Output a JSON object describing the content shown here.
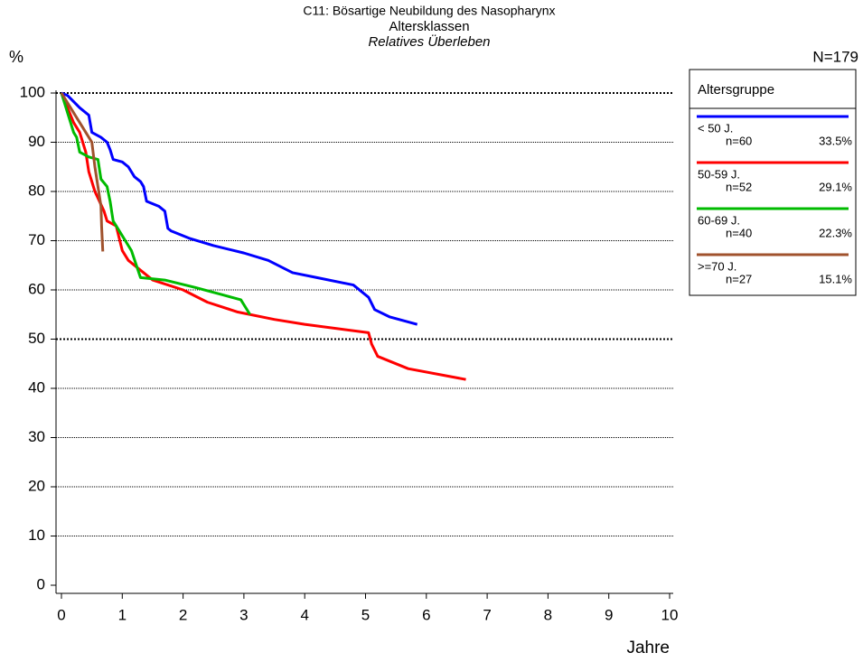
{
  "chart_data": {
    "type": "line",
    "title": "C11: Bösartige Neubildung des Nasopharynx",
    "subtitle": "Altersklassen",
    "subtitle2": "Relatives Überleben",
    "y_label": "%",
    "x_label": "Jahre",
    "total_label": "N=179",
    "legend_title": "Altersgruppe",
    "legend": "right",
    "grid": true,
    "xlim": [
      0,
      10
    ],
    "xticks": [
      0,
      1,
      2,
      3,
      4,
      5,
      6,
      7,
      8,
      9,
      10
    ],
    "ylim": [
      0,
      100
    ],
    "yticks": [
      0,
      10,
      20,
      30,
      40,
      50,
      60,
      70,
      80,
      90,
      100
    ],
    "series": [
      {
        "name": "< 50 J.",
        "n_label": "n=60",
        "share_label": "33.5%",
        "color": "#0000ff",
        "x": [
          0,
          0.1,
          0.3,
          0.45,
          0.5,
          0.65,
          0.75,
          0.8,
          0.85,
          1.0,
          1.1,
          1.2,
          1.3,
          1.35,
          1.4,
          1.6,
          1.7,
          1.75,
          1.8,
          2.1,
          2.5,
          3.0,
          3.4,
          3.8,
          4.2,
          4.8,
          5.05,
          5.15,
          5.4,
          5.85
        ],
        "values": [
          100,
          99.5,
          97,
          95.5,
          92,
          91,
          90,
          88.5,
          86.5,
          86,
          85,
          83,
          82,
          81,
          78,
          77,
          76,
          72.5,
          72,
          70.5,
          69,
          67.5,
          66,
          63.5,
          62.5,
          61,
          58.5,
          56,
          54.5,
          53
        ]
      },
      {
        "name": "50-59 J.",
        "n_label": "n=52",
        "share_label": "29.1%",
        "color": "#ff0000",
        "x": [
          0,
          0.1,
          0.2,
          0.3,
          0.4,
          0.45,
          0.55,
          0.7,
          0.75,
          0.9,
          1.0,
          1.1,
          1.3,
          1.5,
          2.0,
          2.4,
          2.9,
          3.5,
          4.0,
          5.05,
          5.1,
          5.2,
          5.7,
          6.65
        ],
        "values": [
          100,
          97,
          94,
          92,
          88,
          84,
          80,
          76,
          74,
          73,
          68,
          66,
          64,
          62,
          60,
          57.5,
          55.5,
          54,
          53,
          51.3,
          49,
          46.5,
          44,
          41.8
        ]
      },
      {
        "name": "60-69 J.",
        "n_label": "n=40",
        "share_label": "22.3%",
        "color": "#00bb00",
        "x": [
          0,
          0.1,
          0.2,
          0.25,
          0.3,
          0.45,
          0.6,
          0.65,
          0.75,
          0.8,
          0.85,
          0.95,
          1.05,
          1.15,
          1.3,
          1.7,
          2.2,
          2.65,
          2.95,
          3.1
        ],
        "values": [
          100,
          96,
          92,
          91,
          88,
          87,
          86.5,
          82.5,
          81,
          78,
          74,
          72,
          70,
          68,
          62.5,
          62,
          60.5,
          59,
          58,
          55
        ]
      },
      {
        "name": ">=70 J.",
        "n_label": "n=27",
        "share_label": "15.1%",
        "color": "#a0522d",
        "x": [
          0,
          0.15,
          0.3,
          0.4,
          0.5,
          0.55,
          0.6,
          0.65,
          0.66,
          0.68
        ],
        "values": [
          100,
          97,
          94,
          92,
          90,
          85,
          81,
          77,
          73,
          67.8
        ]
      }
    ]
  }
}
